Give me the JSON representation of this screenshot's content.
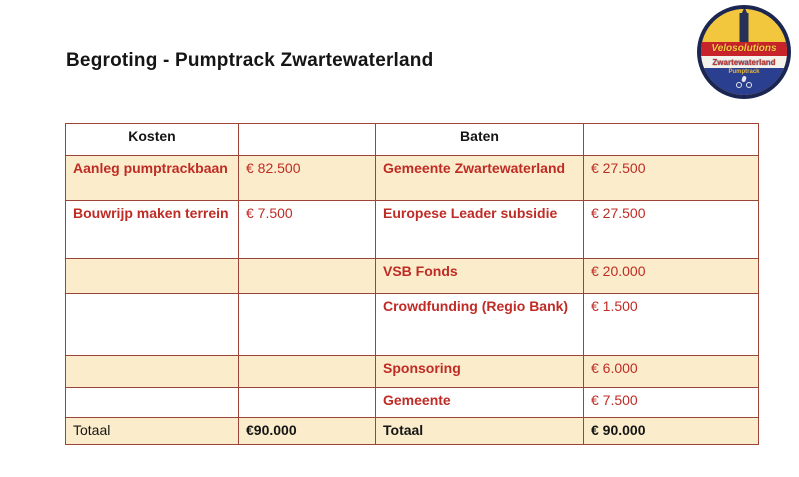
{
  "page": {
    "title": "Begroting - Pumptrack Zwartewaterland"
  },
  "logo": {
    "brand": "Velosolutions",
    "region": "Zwartewaterland",
    "sub": "Pumptrack"
  },
  "colors": {
    "accent_red_text": "#bf2b25",
    "table_border": "#9c4438",
    "row_shade": "#fbedcb",
    "logo_navy": "#1b2653",
    "logo_yellow": "#f2c73d",
    "logo_band_red": "#c8232b",
    "logo_blue": "#2a3f8f"
  },
  "table": {
    "headers": {
      "kosten": "Kosten",
      "baten": "Baten"
    },
    "rows": [
      {
        "kosten": "Aanleg pumptrackbaan",
        "kosten_bedrag": "€ 82.500",
        "baten": "Gemeente Zwartewaterland",
        "baten_bedrag": "€ 27.500"
      },
      {
        "kosten": "Bouwrijp maken terrein",
        "kosten_bedrag": "€ 7.500",
        "baten": "Europese Leader subsidie",
        "baten_bedrag": "€ 27.500"
      },
      {
        "kosten": "",
        "kosten_bedrag": "",
        "baten": "VSB Fonds",
        "baten_bedrag": "€ 20.000"
      },
      {
        "kosten": "",
        "kosten_bedrag": "",
        "baten": "Crowdfunding (Regio Bank)",
        "baten_bedrag": "€ 1.500"
      },
      {
        "kosten": "",
        "kosten_bedrag": "",
        "baten": "Sponsoring",
        "baten_bedrag": "€ 6.000"
      },
      {
        "kosten": "",
        "kosten_bedrag": "",
        "baten": "Gemeente",
        "baten_bedrag": "€ 7.500"
      }
    ],
    "total": {
      "kosten_label": "Totaal",
      "kosten_bedrag": "€90.000",
      "baten_label": "Totaal",
      "baten_bedrag": "€ 90.000"
    }
  }
}
